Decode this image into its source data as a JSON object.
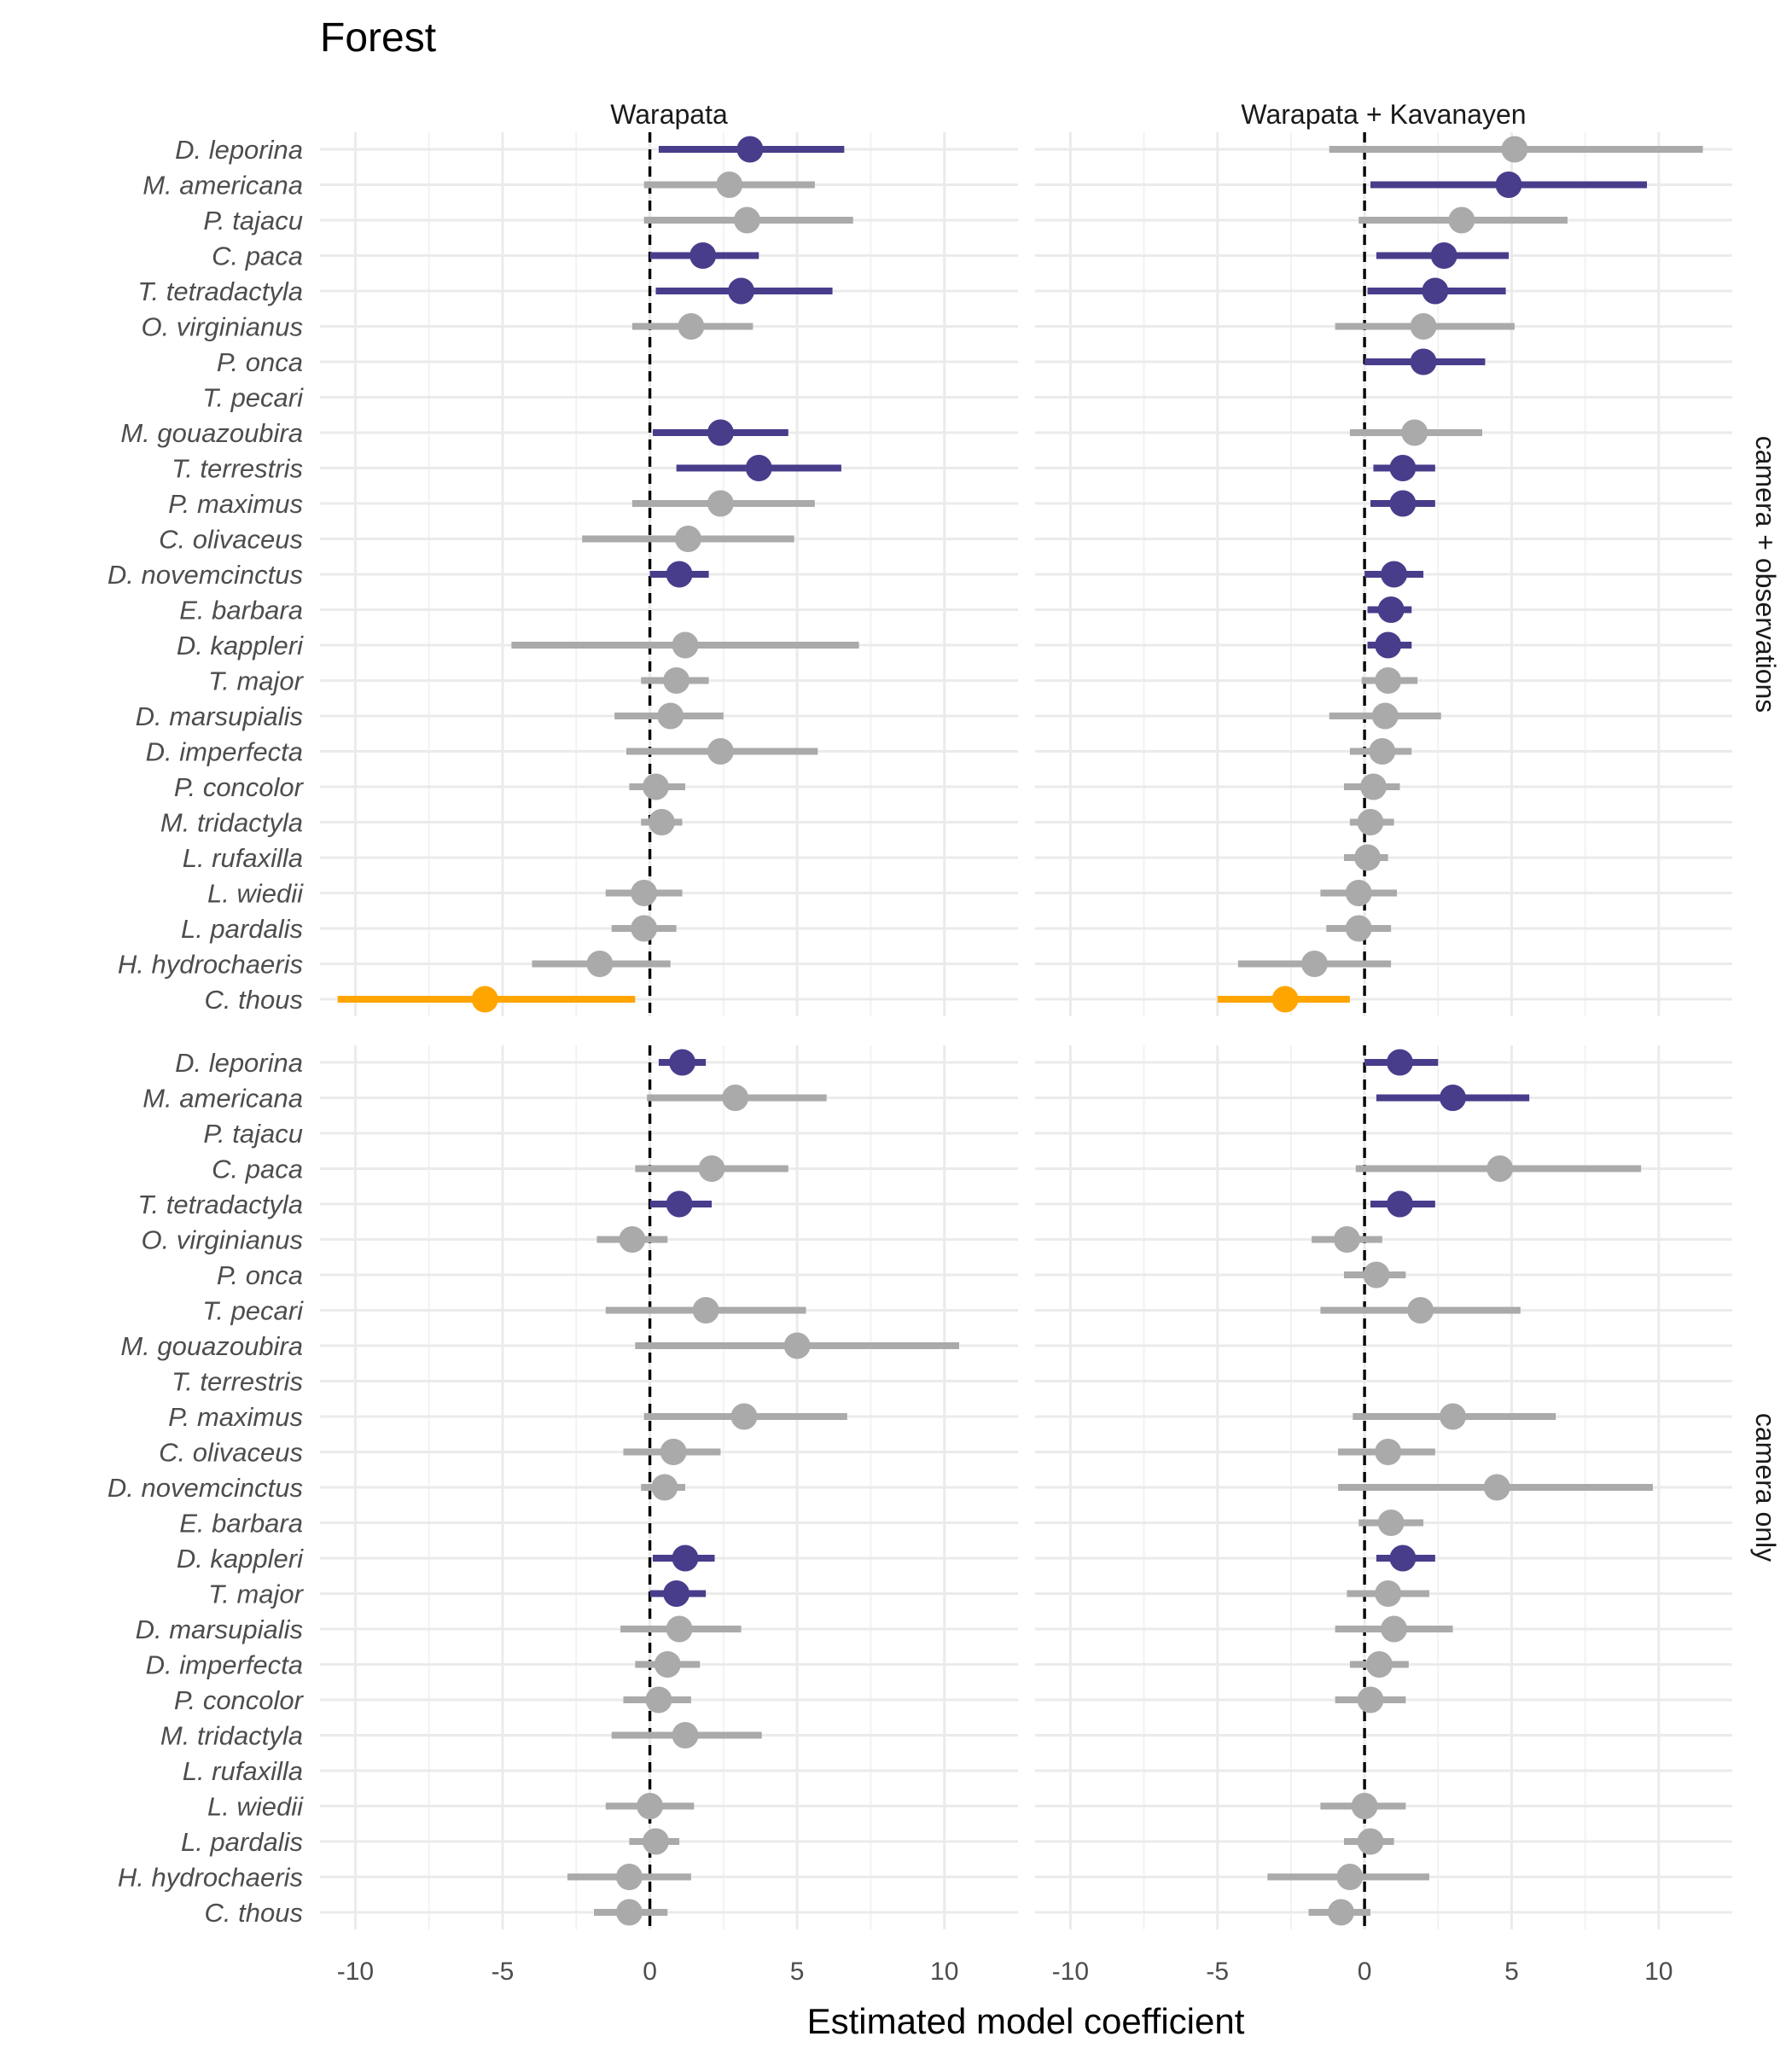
{
  "chart_data": {
    "type": "scatter",
    "title": "Forest",
    "xlabel": "Estimated model coefficient",
    "xlim": [
      -11.2,
      12.5
    ],
    "x_ticks": [
      -10,
      -5,
      0,
      5,
      10
    ],
    "grid": true,
    "reference_line": 0,
    "columns": [
      "Warapata",
      "Warapata + Kavanayen"
    ],
    "rows": [
      "camera + observations",
      "camera only"
    ],
    "colors": {
      "significant_positive": "#483d8b",
      "significant_negative": "#ffa500",
      "not_significant": "#aaaaaa"
    },
    "species": [
      "D. leporina",
      "M. americana",
      "P. tajacu",
      "C. paca",
      "T. tetradactyla",
      "O. virginianus",
      "P. onca",
      "T. pecari",
      "M. gouazoubira",
      "T. terrestris",
      "P. maximus",
      "C. olivaceus",
      "D. novemcinctus",
      "E. barbara",
      "D. kappleri",
      "T. major",
      "D. marsupialis",
      "D. imperfecta",
      "P. concolor",
      "M. tridactyla",
      "L. rufaxilla",
      "L. wiedii",
      "L. pardalis",
      "H. hydrochaeris",
      "C. thous"
    ],
    "panels": [
      {
        "row": "camera + observations",
        "column": "Warapata",
        "estimates": [
          {
            "species": "D. leporina",
            "estimate": 3.4,
            "lower": 0.3,
            "upper": 6.6,
            "group": "significant_positive"
          },
          {
            "species": "M. americana",
            "estimate": 2.7,
            "lower": -0.2,
            "upper": 5.6,
            "group": "not_significant"
          },
          {
            "species": "P. tajacu",
            "estimate": 3.3,
            "lower": -0.2,
            "upper": 6.9,
            "group": "not_significant"
          },
          {
            "species": "C. paca",
            "estimate": 1.8,
            "lower": 0.0,
            "upper": 3.7,
            "group": "significant_positive"
          },
          {
            "species": "T. tetradactyla",
            "estimate": 3.1,
            "lower": 0.2,
            "upper": 6.2,
            "group": "significant_positive"
          },
          {
            "species": "O. virginianus",
            "estimate": 1.4,
            "lower": -0.6,
            "upper": 3.5,
            "group": "not_significant"
          },
          {
            "species": "M. gouazoubira",
            "estimate": 2.4,
            "lower": 0.1,
            "upper": 4.7,
            "group": "significant_positive"
          },
          {
            "species": "T. terrestris",
            "estimate": 3.7,
            "lower": 0.9,
            "upper": 6.5,
            "group": "significant_positive"
          },
          {
            "species": "P. maximus",
            "estimate": 2.4,
            "lower": -0.6,
            "upper": 5.6,
            "group": "not_significant"
          },
          {
            "species": "C. olivaceus",
            "estimate": 1.3,
            "lower": -2.3,
            "upper": 4.9,
            "group": "not_significant"
          },
          {
            "species": "D. novemcinctus",
            "estimate": 1.0,
            "lower": 0.0,
            "upper": 2.0,
            "group": "significant_positive"
          },
          {
            "species": "D. kappleri",
            "estimate": 1.2,
            "lower": -4.7,
            "upper": 7.1,
            "group": "not_significant"
          },
          {
            "species": "T. major",
            "estimate": 0.9,
            "lower": -0.3,
            "upper": 2.0,
            "group": "not_significant"
          },
          {
            "species": "D. marsupialis",
            "estimate": 0.7,
            "lower": -1.2,
            "upper": 2.5,
            "group": "not_significant"
          },
          {
            "species": "D. imperfecta",
            "estimate": 2.4,
            "lower": -0.8,
            "upper": 5.7,
            "group": "not_significant"
          },
          {
            "species": "P. concolor",
            "estimate": 0.2,
            "lower": -0.7,
            "upper": 1.2,
            "group": "not_significant"
          },
          {
            "species": "M. tridactyla",
            "estimate": 0.4,
            "lower": -0.3,
            "upper": 1.1,
            "group": "not_significant"
          },
          {
            "species": "L. wiedii",
            "estimate": -0.2,
            "lower": -1.5,
            "upper": 1.1,
            "group": "not_significant"
          },
          {
            "species": "L. pardalis",
            "estimate": -0.2,
            "lower": -1.3,
            "upper": 0.9,
            "group": "not_significant"
          },
          {
            "species": "H. hydrochaeris",
            "estimate": -1.7,
            "lower": -4.0,
            "upper": 0.7,
            "group": "not_significant"
          },
          {
            "species": "C. thous",
            "estimate": -5.6,
            "lower": -10.6,
            "upper": -0.5,
            "group": "significant_negative"
          }
        ]
      },
      {
        "row": "camera + observations",
        "column": "Warapata + Kavanayen",
        "estimates": [
          {
            "species": "D. leporina",
            "estimate": 5.1,
            "lower": -1.2,
            "upper": 11.5,
            "group": "not_significant"
          },
          {
            "species": "M. americana",
            "estimate": 4.9,
            "lower": 0.2,
            "upper": 9.6,
            "group": "significant_positive"
          },
          {
            "species": "P. tajacu",
            "estimate": 3.3,
            "lower": -0.2,
            "upper": 6.9,
            "group": "not_significant"
          },
          {
            "species": "C. paca",
            "estimate": 2.7,
            "lower": 0.4,
            "upper": 4.9,
            "group": "significant_positive"
          },
          {
            "species": "T. tetradactyla",
            "estimate": 2.4,
            "lower": 0.1,
            "upper": 4.8,
            "group": "significant_positive"
          },
          {
            "species": "O. virginianus",
            "estimate": 2.0,
            "lower": -1.0,
            "upper": 5.1,
            "group": "not_significant"
          },
          {
            "species": "P. onca",
            "estimate": 2.0,
            "lower": 0.0,
            "upper": 4.1,
            "group": "significant_positive"
          },
          {
            "species": "M. gouazoubira",
            "estimate": 1.7,
            "lower": -0.5,
            "upper": 4.0,
            "group": "not_significant"
          },
          {
            "species": "T. terrestris",
            "estimate": 1.3,
            "lower": 0.3,
            "upper": 2.4,
            "group": "significant_positive"
          },
          {
            "species": "P. maximus",
            "estimate": 1.3,
            "lower": 0.2,
            "upper": 2.4,
            "group": "significant_positive"
          },
          {
            "species": "D. novemcinctus",
            "estimate": 1.0,
            "lower": 0.0,
            "upper": 2.0,
            "group": "significant_positive"
          },
          {
            "species": "E. barbara",
            "estimate": 0.9,
            "lower": 0.1,
            "upper": 1.6,
            "group": "significant_positive"
          },
          {
            "species": "D. kappleri",
            "estimate": 0.8,
            "lower": 0.1,
            "upper": 1.6,
            "group": "significant_positive"
          },
          {
            "species": "T. major",
            "estimate": 0.8,
            "lower": -0.1,
            "upper": 1.8,
            "group": "not_significant"
          },
          {
            "species": "D. marsupialis",
            "estimate": 0.7,
            "lower": -1.2,
            "upper": 2.6,
            "group": "not_significant"
          },
          {
            "species": "D. imperfecta",
            "estimate": 0.6,
            "lower": -0.5,
            "upper": 1.6,
            "group": "not_significant"
          },
          {
            "species": "P. concolor",
            "estimate": 0.3,
            "lower": -0.7,
            "upper": 1.2,
            "group": "not_significant"
          },
          {
            "species": "M. tridactyla",
            "estimate": 0.2,
            "lower": -0.5,
            "upper": 1.0,
            "group": "not_significant"
          },
          {
            "species": "L. rufaxilla",
            "estimate": 0.1,
            "lower": -0.7,
            "upper": 0.8,
            "group": "not_significant"
          },
          {
            "species": "L. wiedii",
            "estimate": -0.2,
            "lower": -1.5,
            "upper": 1.1,
            "group": "not_significant"
          },
          {
            "species": "L. pardalis",
            "estimate": -0.2,
            "lower": -1.3,
            "upper": 0.9,
            "group": "not_significant"
          },
          {
            "species": "H. hydrochaeris",
            "estimate": -1.7,
            "lower": -4.3,
            "upper": 0.9,
            "group": "not_significant"
          },
          {
            "species": "C. thous",
            "estimate": -2.7,
            "lower": -5.0,
            "upper": -0.5,
            "group": "significant_negative"
          }
        ]
      },
      {
        "row": "camera only",
        "column": "Warapata",
        "estimates": [
          {
            "species": "D. leporina",
            "estimate": 1.1,
            "lower": 0.3,
            "upper": 1.9,
            "group": "significant_positive"
          },
          {
            "species": "M. americana",
            "estimate": 2.9,
            "lower": -0.1,
            "upper": 6.0,
            "group": "not_significant"
          },
          {
            "species": "C. paca",
            "estimate": 2.1,
            "lower": -0.5,
            "upper": 4.7,
            "group": "not_significant"
          },
          {
            "species": "T. tetradactyla",
            "estimate": 1.0,
            "lower": 0.0,
            "upper": 2.1,
            "group": "significant_positive"
          },
          {
            "species": "O. virginianus",
            "estimate": -0.6,
            "lower": -1.8,
            "upper": 0.6,
            "group": "not_significant"
          },
          {
            "species": "T. pecari",
            "estimate": 1.9,
            "lower": -1.5,
            "upper": 5.3,
            "group": "not_significant"
          },
          {
            "species": "M. gouazoubira",
            "estimate": 5.0,
            "lower": -0.5,
            "upper": 10.5,
            "group": "not_significant"
          },
          {
            "species": "P. maximus",
            "estimate": 3.2,
            "lower": -0.2,
            "upper": 6.7,
            "group": "not_significant"
          },
          {
            "species": "C. olivaceus",
            "estimate": 0.8,
            "lower": -0.9,
            "upper": 2.4,
            "group": "not_significant"
          },
          {
            "species": "D. novemcinctus",
            "estimate": 0.5,
            "lower": -0.3,
            "upper": 1.2,
            "group": "not_significant"
          },
          {
            "species": "D. kappleri",
            "estimate": 1.2,
            "lower": 0.1,
            "upper": 2.2,
            "group": "significant_positive"
          },
          {
            "species": "T. major",
            "estimate": 0.9,
            "lower": 0.0,
            "upper": 1.9,
            "group": "significant_positive"
          },
          {
            "species": "D. marsupialis",
            "estimate": 1.0,
            "lower": -1.0,
            "upper": 3.1,
            "group": "not_significant"
          },
          {
            "species": "D. imperfecta",
            "estimate": 0.6,
            "lower": -0.5,
            "upper": 1.7,
            "group": "not_significant"
          },
          {
            "species": "P. concolor",
            "estimate": 0.3,
            "lower": -0.9,
            "upper": 1.4,
            "group": "not_significant"
          },
          {
            "species": "M. tridactyla",
            "estimate": 1.2,
            "lower": -1.3,
            "upper": 3.8,
            "group": "not_significant"
          },
          {
            "species": "L. wiedii",
            "estimate": 0.0,
            "lower": -1.5,
            "upper": 1.5,
            "group": "not_significant"
          },
          {
            "species": "L. pardalis",
            "estimate": 0.2,
            "lower": -0.7,
            "upper": 1.0,
            "group": "not_significant"
          },
          {
            "species": "H. hydrochaeris",
            "estimate": -0.7,
            "lower": -2.8,
            "upper": 1.4,
            "group": "not_significant"
          },
          {
            "species": "C. thous",
            "estimate": -0.7,
            "lower": -1.9,
            "upper": 0.6,
            "group": "not_significant"
          }
        ]
      },
      {
        "row": "camera only",
        "column": "Warapata + Kavanayen",
        "estimates": [
          {
            "species": "D. leporina",
            "estimate": 1.2,
            "lower": 0.0,
            "upper": 2.5,
            "group": "significant_positive"
          },
          {
            "species": "M. americana",
            "estimate": 3.0,
            "lower": 0.4,
            "upper": 5.6,
            "group": "significant_positive"
          },
          {
            "species": "C. paca",
            "estimate": 4.6,
            "lower": -0.3,
            "upper": 9.4,
            "group": "not_significant"
          },
          {
            "species": "T. tetradactyla",
            "estimate": 1.2,
            "lower": 0.2,
            "upper": 2.4,
            "group": "significant_positive"
          },
          {
            "species": "O. virginianus",
            "estimate": -0.6,
            "lower": -1.8,
            "upper": 0.6,
            "group": "not_significant"
          },
          {
            "species": "P. onca",
            "estimate": 0.4,
            "lower": -0.7,
            "upper": 1.4,
            "group": "not_significant"
          },
          {
            "species": "T. pecari",
            "estimate": 1.9,
            "lower": -1.5,
            "upper": 5.3,
            "group": "not_significant"
          },
          {
            "species": "P. maximus",
            "estimate": 3.0,
            "lower": -0.4,
            "upper": 6.5,
            "group": "not_significant"
          },
          {
            "species": "C. olivaceus",
            "estimate": 0.8,
            "lower": -0.9,
            "upper": 2.4,
            "group": "not_significant"
          },
          {
            "species": "D. novemcinctus",
            "estimate": 4.5,
            "lower": -0.9,
            "upper": 9.8,
            "group": "not_significant"
          },
          {
            "species": "E. barbara",
            "estimate": 0.9,
            "lower": -0.2,
            "upper": 2.0,
            "group": "not_significant"
          },
          {
            "species": "D. kappleri",
            "estimate": 1.3,
            "lower": 0.4,
            "upper": 2.4,
            "group": "significant_positive"
          },
          {
            "species": "T. major",
            "estimate": 0.8,
            "lower": -0.6,
            "upper": 2.2,
            "group": "not_significant"
          },
          {
            "species": "D. marsupialis",
            "estimate": 1.0,
            "lower": -1.0,
            "upper": 3.0,
            "group": "not_significant"
          },
          {
            "species": "D. imperfecta",
            "estimate": 0.5,
            "lower": -0.5,
            "upper": 1.5,
            "group": "not_significant"
          },
          {
            "species": "P. concolor",
            "estimate": 0.2,
            "lower": -1.0,
            "upper": 1.4,
            "group": "not_significant"
          },
          {
            "species": "L. wiedii",
            "estimate": 0.0,
            "lower": -1.5,
            "upper": 1.4,
            "group": "not_significant"
          },
          {
            "species": "L. pardalis",
            "estimate": 0.2,
            "lower": -0.7,
            "upper": 1.0,
            "group": "not_significant"
          },
          {
            "species": "H. hydrochaeris",
            "estimate": -0.5,
            "lower": -3.3,
            "upper": 2.2,
            "group": "not_significant"
          },
          {
            "species": "C. thous",
            "estimate": -0.8,
            "lower": -1.9,
            "upper": 0.2,
            "group": "not_significant"
          }
        ]
      }
    ]
  }
}
